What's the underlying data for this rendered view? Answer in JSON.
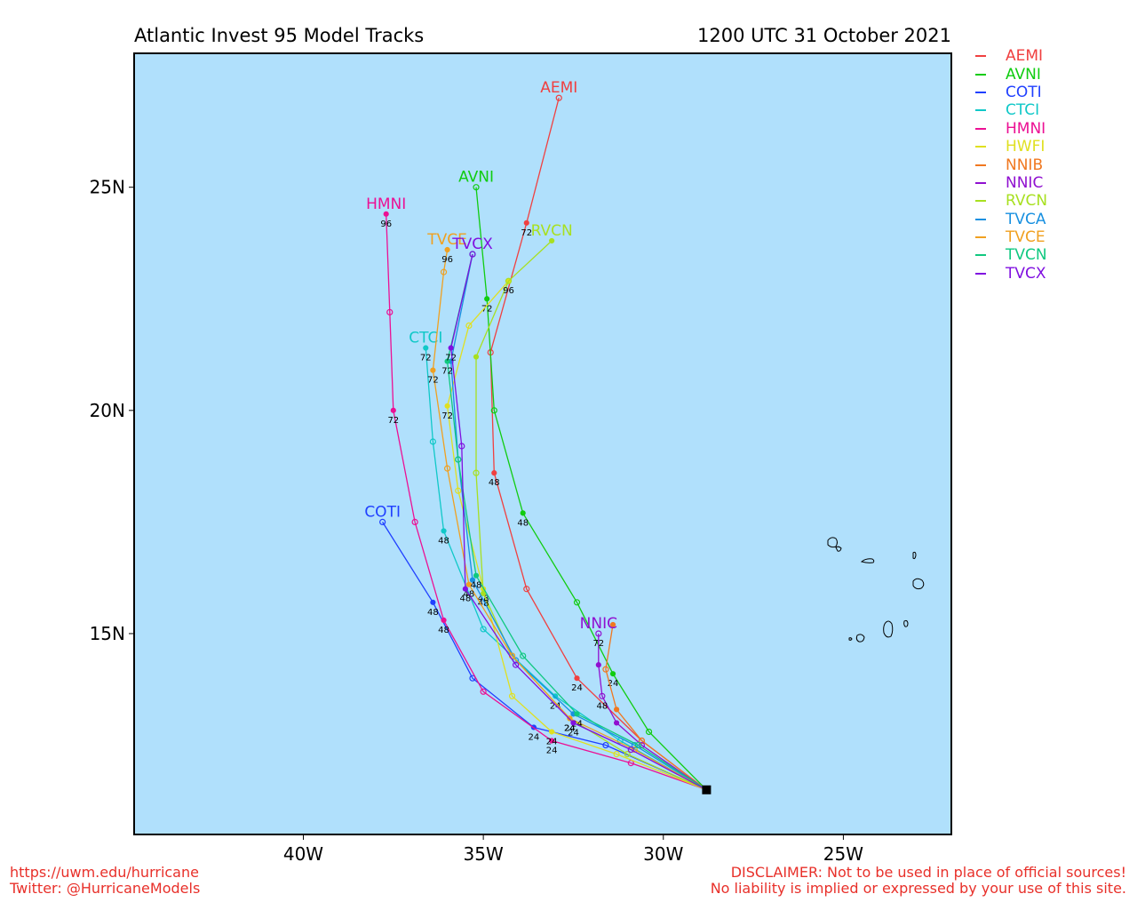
{
  "header": {
    "title": "Atlantic Invest 95 Model Tracks",
    "datetime": "1200 UTC 31 October 2021"
  },
  "map": {
    "ocean_color": "#b0e0fc",
    "lon_range": [
      -44.7,
      -22
    ],
    "lat_range": [
      10.5,
      28
    ],
    "lat_ticks": [
      {
        "value": 25,
        "label": "25N"
      },
      {
        "value": 20,
        "label": "20N"
      },
      {
        "value": 15,
        "label": "15N"
      }
    ],
    "lon_ticks": [
      {
        "value": -40,
        "label": "40W"
      },
      {
        "value": -35,
        "label": "35W"
      },
      {
        "value": -30,
        "label": "30W"
      },
      {
        "value": -25,
        "label": "25W"
      }
    ],
    "storm_position": {
      "lon": -28.8,
      "lat": 11.5
    }
  },
  "legend": [
    {
      "name": "AEMI",
      "color": "#f04040"
    },
    {
      "name": "AVNI",
      "color": "#10cc10"
    },
    {
      "name": "COTI",
      "color": "#2040ff"
    },
    {
      "name": "CTCI",
      "color": "#10c8c8"
    },
    {
      "name": "HMNI",
      "color": "#ec1094"
    },
    {
      "name": "HWFI",
      "color": "#e0e020"
    },
    {
      "name": "NNIB",
      "color": "#f07820"
    },
    {
      "name": "NNIC",
      "color": "#9010d0"
    },
    {
      "name": "RVCN",
      "color": "#a8e020"
    },
    {
      "name": "TVCA",
      "color": "#1890e0"
    },
    {
      "name": "TVCE",
      "color": "#f0a020"
    },
    {
      "name": "TVCN",
      "color": "#10c880"
    },
    {
      "name": "TVCX",
      "color": "#8010e0"
    }
  ],
  "tracks": [
    {
      "name": "AEMI",
      "color": "#f04040",
      "label": "AEMI",
      "points": [
        [
          -28.8,
          11.5
        ],
        [
          -30.6,
          12.6
        ],
        [
          -32.4,
          14.0
        ],
        [
          -33.8,
          16.0
        ],
        [
          -34.7,
          18.6
        ],
        [
          -34.8,
          21.3
        ],
        [
          -33.8,
          24.2
        ],
        [
          -32.9,
          27.0
        ]
      ],
      "hours": [
        {
          "i": 2,
          "h": "24"
        },
        {
          "i": 4,
          "h": "48"
        },
        {
          "i": 6,
          "h": "72"
        }
      ]
    },
    {
      "name": "AVNI",
      "color": "#10cc10",
      "label": "AVNI",
      "points": [
        [
          -28.8,
          11.5
        ],
        [
          -30.4,
          12.8
        ],
        [
          -31.4,
          14.1
        ],
        [
          -32.4,
          15.7
        ],
        [
          -33.9,
          17.7
        ],
        [
          -34.7,
          20.0
        ],
        [
          -34.9,
          22.5
        ],
        [
          -35.2,
          25.0
        ]
      ],
      "hours": [
        {
          "i": 2,
          "h": "24"
        },
        {
          "i": 4,
          "h": "48"
        },
        {
          "i": 6,
          "h": "72"
        }
      ]
    },
    {
      "name": "COTI",
      "color": "#2040ff",
      "label": "COTI",
      "points": [
        [
          -28.8,
          11.5
        ],
        [
          -31.6,
          12.5
        ],
        [
          -33.6,
          12.9
        ],
        [
          -35.3,
          14.0
        ],
        [
          -36.4,
          15.7
        ],
        [
          -37.8,
          17.5
        ]
      ],
      "hours": [
        {
          "i": 2,
          "h": "24"
        },
        {
          "i": 4,
          "h": "48"
        }
      ]
    },
    {
      "name": "CTCI",
      "color": "#10c8c8",
      "label": "CTCI",
      "points": [
        [
          -28.8,
          11.5
        ],
        [
          -31.2,
          12.6
        ],
        [
          -33.0,
          13.6
        ],
        [
          -35.0,
          15.1
        ],
        [
          -36.1,
          17.3
        ],
        [
          -36.4,
          19.3
        ],
        [
          -36.6,
          21.4
        ]
      ],
      "hours": [
        {
          "i": 2,
          "h": "24"
        },
        {
          "i": 4,
          "h": "48"
        },
        {
          "i": 6,
          "h": "72"
        }
      ]
    },
    {
      "name": "HMNI",
      "color": "#ec1094",
      "label": "HMNI",
      "points": [
        [
          -28.8,
          11.5
        ],
        [
          -30.9,
          12.1
        ],
        [
          -33.1,
          12.6
        ],
        [
          -35.0,
          13.7
        ],
        [
          -36.1,
          15.3
        ],
        [
          -36.9,
          17.5
        ],
        [
          -37.5,
          20.0
        ],
        [
          -37.6,
          22.2
        ],
        [
          -37.7,
          24.4
        ]
      ],
      "hours": [
        {
          "i": 2,
          "h": "24"
        },
        {
          "i": 4,
          "h": "48"
        },
        {
          "i": 6,
          "h": "72"
        },
        {
          "i": 8,
          "h": "96"
        }
      ]
    },
    {
      "name": "HWFI",
      "color": "#e0e020",
      "label": "",
      "points": [
        [
          -28.8,
          11.5
        ],
        [
          -31.3,
          12.3
        ],
        [
          -33.1,
          12.8
        ],
        [
          -34.2,
          13.6
        ],
        [
          -35.0,
          16.0
        ],
        [
          -35.7,
          18.2
        ],
        [
          -36.0,
          20.1
        ],
        [
          -35.4,
          21.9
        ],
        [
          -34.3,
          22.9
        ]
      ],
      "hours": [
        {
          "i": 2,
          "h": "24"
        },
        {
          "i": 4,
          "h": "48"
        },
        {
          "i": 6,
          "h": "72"
        }
      ]
    },
    {
      "name": "NNIB",
      "color": "#f07820",
      "label": "",
      "points": [
        [
          -28.8,
          11.5
        ],
        [
          -30.6,
          12.6
        ],
        [
          -31.3,
          13.3
        ],
        [
          -31.6,
          14.2
        ],
        [
          -31.4,
          15.2
        ]
      ],
      "hours": []
    },
    {
      "name": "NNIC",
      "color": "#9010d0",
      "label": "NNIC",
      "points": [
        [
          -28.8,
          11.5
        ],
        [
          -30.6,
          12.5
        ],
        [
          -31.3,
          13.0
        ],
        [
          -31.7,
          13.6
        ],
        [
          -31.8,
          14.3
        ],
        [
          -31.8,
          15.0
        ]
      ],
      "hours": [
        {
          "i": 3,
          "h": "48"
        },
        {
          "i": 5,
          "h": "72"
        }
      ]
    },
    {
      "name": "RVCN",
      "color": "#a8e020",
      "label": "RVCN",
      "points": [
        [
          -28.8,
          11.5
        ],
        [
          -31.0,
          12.3
        ],
        [
          -32.6,
          13.1
        ],
        [
          -34.2,
          14.5
        ],
        [
          -35.0,
          15.9
        ],
        [
          -35.2,
          18.6
        ],
        [
          -35.2,
          21.2
        ],
        [
          -34.3,
          22.9
        ],
        [
          -33.1,
          23.8
        ]
      ],
      "hours": [
        {
          "i": 2,
          "h": "24"
        },
        {
          "i": 4,
          "h": "48"
        },
        {
          "i": 7,
          "h": "96"
        }
      ]
    },
    {
      "name": "TVCA",
      "color": "#1890e0",
      "label": "",
      "points": [
        [
          -28.8,
          11.5
        ],
        [
          -30.8,
          12.5
        ],
        [
          -32.5,
          13.2
        ],
        [
          -34.1,
          14.4
        ],
        [
          -35.3,
          16.2
        ],
        [
          -35.7,
          18.9
        ],
        [
          -35.9,
          21.1
        ],
        [
          -35.3,
          23.5
        ]
      ],
      "hours": []
    },
    {
      "name": "TVCE",
      "color": "#f0a020",
      "label": "TVCE",
      "points": [
        [
          -28.8,
          11.5
        ],
        [
          -30.8,
          12.4
        ],
        [
          -32.6,
          13.1
        ],
        [
          -34.2,
          14.5
        ],
        [
          -35.4,
          16.1
        ],
        [
          -36.0,
          18.7
        ],
        [
          -36.4,
          20.9
        ],
        [
          -36.1,
          23.1
        ],
        [
          -36.0,
          23.6
        ]
      ],
      "hours": [
        {
          "i": 2,
          "h": "24"
        },
        {
          "i": 4,
          "h": "48"
        },
        {
          "i": 6,
          "h": "72"
        },
        {
          "i": 8,
          "h": "96"
        }
      ]
    },
    {
      "name": "TVCN",
      "color": "#10c880",
      "label": "",
      "points": [
        [
          -28.8,
          11.5
        ],
        [
          -30.7,
          12.5
        ],
        [
          -32.4,
          13.2
        ],
        [
          -33.9,
          14.5
        ],
        [
          -35.2,
          16.3
        ],
        [
          -35.7,
          18.9
        ],
        [
          -36.0,
          21.1
        ],
        [
          -35.3,
          23.5
        ]
      ],
      "hours": [
        {
          "i": 2,
          "h": "24"
        },
        {
          "i": 4,
          "h": "48"
        },
        {
          "i": 6,
          "h": "72"
        }
      ]
    },
    {
      "name": "TVCX",
      "color": "#8010e0",
      "label": "TVCX",
      "points": [
        [
          -28.8,
          11.5
        ],
        [
          -30.9,
          12.4
        ],
        [
          -32.5,
          13.0
        ],
        [
          -34.1,
          14.3
        ],
        [
          -35.5,
          16.0
        ],
        [
          -35.6,
          19.2
        ],
        [
          -35.9,
          21.4
        ],
        [
          -35.3,
          23.5
        ]
      ],
      "hours": [
        {
          "i": 2,
          "h": "24"
        },
        {
          "i": 4,
          "h": "48"
        },
        {
          "i": 6,
          "h": "72"
        }
      ]
    }
  ],
  "footer": {
    "url": "https://uwm.edu/hurricane",
    "twitter": "Twitter: @HurricaneModels",
    "disclaimer_1": "DISCLAIMER: Not to be used in place of official sources!",
    "disclaimer_2": "No liability is implied or expressed by your use of this site."
  }
}
